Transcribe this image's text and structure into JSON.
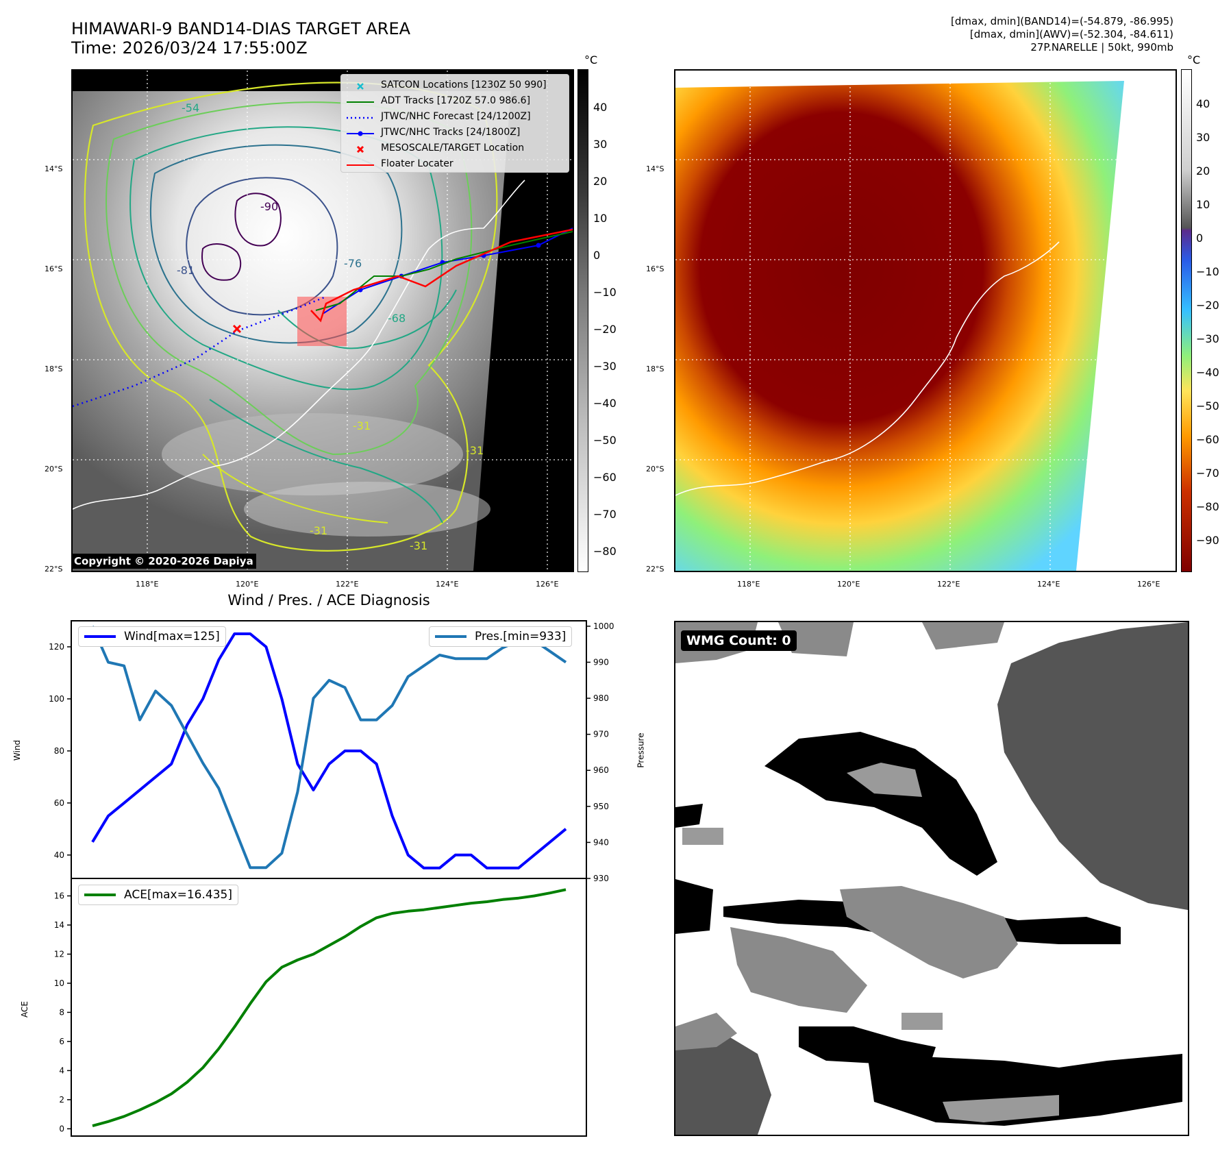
{
  "header": {
    "title_line1": "HIMAWARI-9 BAND14-DIAS TARGET AREA",
    "title_line2": "Time: 2026/03/24 17:55:00Z",
    "info_line1": "[dmax, dmin](BAND14)=(-54.879, -86.995)",
    "info_line2": "[dmax, dmin](AWV)=(-52.304, -84.611)",
    "info_line3": "27P.NARELLE | 50kt, 990mb"
  },
  "map_axes": {
    "lat_labels": [
      "14°S",
      "16°S",
      "18°S",
      "20°S",
      "22°S"
    ],
    "lon_labels": [
      "118°E",
      "120°E",
      "122°E",
      "124°E",
      "126°E"
    ]
  },
  "colorbar_left": {
    "unit": "°C",
    "ticks": [
      "40",
      "30",
      "20",
      "10",
      "0",
      "−10",
      "−20",
      "−30",
      "−40",
      "−50",
      "−60",
      "−70",
      "−80"
    ]
  },
  "colorbar_right": {
    "unit": "°C",
    "ticks": [
      "40",
      "30",
      "20",
      "10",
      "0",
      "−10",
      "−20",
      "−30",
      "−40",
      "−50",
      "−60",
      "−70",
      "−80",
      "−90"
    ]
  },
  "legend": {
    "satcon": "SATCON Locations [1230Z 50 990]",
    "adt": "ADT Tracks [1720Z 57.0 986.6]",
    "jtwc_forecast": "JTWC/NHC Forecast [24/1200Z]",
    "jtwc_tracks": "JTWC/NHC Tracks [24/1800Z]",
    "mesoscale": "MESOSCALE/TARGET Location",
    "floater": "Floater Locater"
  },
  "contour_labels": [
    "-54",
    "-81",
    "-90",
    "-76",
    "-31",
    "-31",
    "-31",
    "-31",
    "-68"
  ],
  "copyright": "Copyright © 2020-2026 Dapiya",
  "wmg": {
    "label": "WMG Count: 0"
  },
  "colors": {
    "wind": "#0000ff",
    "pressure": "#1f77b4",
    "ace": "#008000",
    "adt": "#008000",
    "floater": "#ff0000",
    "satcon": "#17becf"
  },
  "chart_data": [
    {
      "type": "line",
      "title": "Wind / Pres. / ACE Diagnosis",
      "ylabel": "Wind",
      "ylabel_right": "Pressure",
      "ylim": [
        31,
        130
      ],
      "ylim_right": [
        930,
        1001.5
      ],
      "yticks": [
        40,
        60,
        80,
        100,
        120
      ],
      "yticks_right": [
        930,
        940,
        950,
        960,
        970,
        980,
        990,
        1000
      ],
      "series": [
        {
          "name": "Wind[max=125]",
          "axis": "left",
          "values": [
            45,
            55,
            60,
            65,
            70,
            75,
            90,
            100,
            115,
            125,
            125,
            120,
            100,
            75,
            65,
            75,
            80,
            80,
            75,
            55,
            40,
            35,
            35,
            40,
            40,
            35,
            35,
            35,
            40,
            45,
            50
          ]
        },
        {
          "name": "Pres.[min=933]",
          "axis": "right",
          "values": [
            1000,
            990,
            989,
            974,
            982,
            978,
            970,
            962,
            955,
            944,
            933,
            933,
            937,
            954,
            980,
            985,
            983,
            974,
            974,
            978,
            986,
            989,
            992,
            991,
            991,
            991,
            994,
            996,
            996,
            993,
            990
          ]
        }
      ]
    },
    {
      "type": "line",
      "ylabel": "ACE",
      "ylim": [
        -0.5,
        17.2
      ],
      "yticks": [
        0,
        2,
        4,
        6,
        8,
        10,
        12,
        14,
        16
      ],
      "series": [
        {
          "name": "ACE[max=16.435]",
          "values": [
            0.2,
            0.5,
            0.85,
            1.3,
            1.8,
            2.4,
            3.2,
            4.2,
            5.5,
            7.0,
            8.6,
            10.1,
            11.1,
            11.6,
            12.0,
            12.6,
            13.2,
            13.9,
            14.5,
            14.8,
            14.95,
            15.05,
            15.2,
            15.35,
            15.5,
            15.6,
            15.75,
            15.85,
            16.0,
            16.2,
            16.435
          ]
        }
      ]
    }
  ]
}
